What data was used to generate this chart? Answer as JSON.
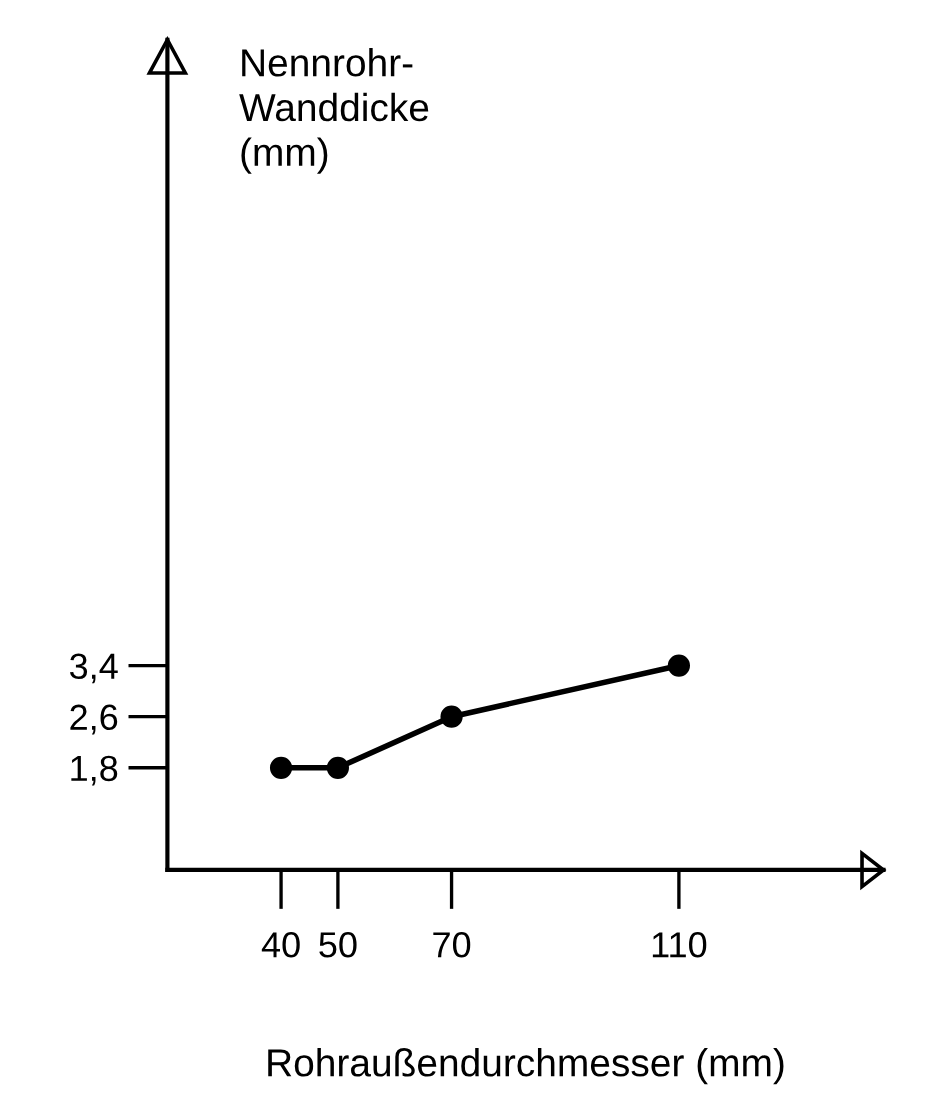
{
  "chart_data": {
    "type": "line",
    "xlabel": "Rohraußendurchmesser (mm)",
    "ylabel": "Nennrohr-\nWanddicke\n(mm)",
    "x": [
      40,
      50,
      70,
      110
    ],
    "values": [
      1.8,
      1.8,
      2.6,
      3.4
    ],
    "color": "#000000",
    "marker": "circle",
    "line_style": "solid",
    "xlim": [
      20,
      146
    ],
    "xticks": [
      40,
      50,
      70,
      110
    ],
    "ylim": [
      0.2,
      13.2
    ],
    "yticks": [
      {
        "value": 1.8,
        "label": "1,8"
      },
      {
        "value": 2.6,
        "label": "2,6"
      },
      {
        "value": 3.4,
        "label": "3,4"
      }
    ],
    "grid": false
  }
}
